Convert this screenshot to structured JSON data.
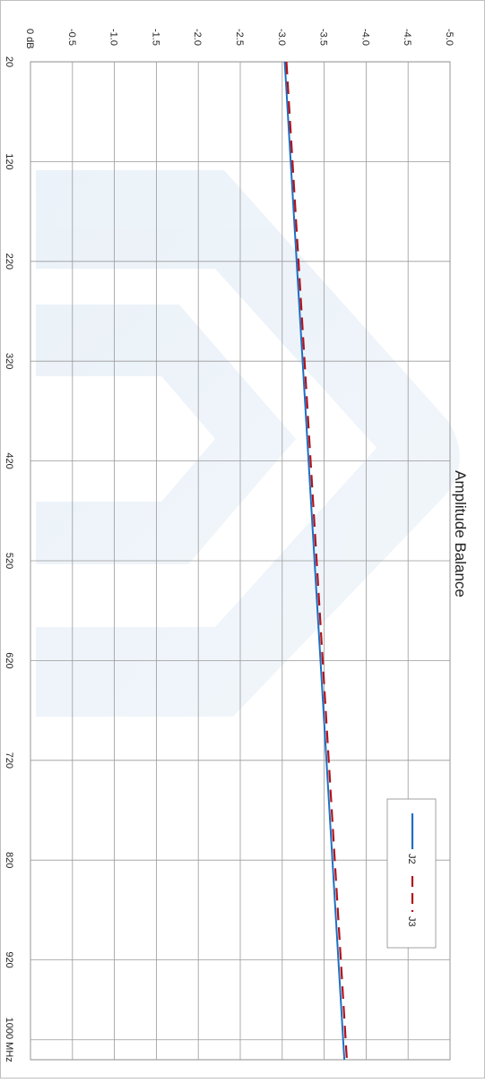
{
  "chart_data": {
    "type": "line",
    "title": "Amplitude Balance",
    "x_ticks": [
      "20",
      "120",
      "220",
      "320",
      "420",
      "520",
      "620",
      "720",
      "820",
      "920",
      "1000 MHz"
    ],
    "x_tick_values": [
      20,
      120,
      220,
      320,
      420,
      520,
      620,
      720,
      820,
      920,
      1000
    ],
    "y_ticks": [
      "0 dB",
      "-0.5",
      "-1.0",
      "-1.5",
      "-2.0",
      "-2.5",
      "-3.0",
      "-3.5",
      "-4.0",
      "-4.5",
      "-5.0"
    ],
    "y_tick_values": [
      0,
      -0.5,
      -1.0,
      -1.5,
      -2.0,
      -2.5,
      -3.0,
      -3.5,
      -4.0,
      -4.5,
      -5.0
    ],
    "xlim": [
      20,
      1020
    ],
    "ylim": [
      -5.0,
      0
    ],
    "grid": true,
    "legend_position": "bottom-right",
    "orientation": "rotated 90 degrees clockwise",
    "series": [
      {
        "name": "J2",
        "color": "#1f6fc1",
        "style": "solid",
        "x": [
          20,
          1020
        ],
        "y": [
          -3.03,
          -3.74
        ]
      },
      {
        "name": "J3",
        "color": "#b3121b",
        "style": "dashed",
        "x": [
          20,
          1020
        ],
        "y": [
          -3.05,
          -3.77
        ]
      }
    ]
  }
}
